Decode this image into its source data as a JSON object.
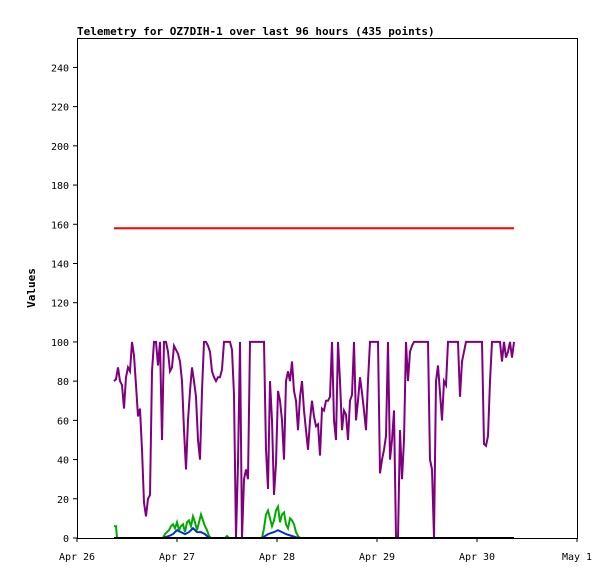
{
  "chart_data": {
    "type": "line",
    "title": "Telemetry for OZ7DIH-1 over last 96 hours (435 points)",
    "xlabel": "",
    "ylabel": "Values",
    "x_tick_labels": [
      "Apr 26",
      "Apr 27",
      "Apr 28",
      "Apr 29",
      "Apr 30",
      "May 1"
    ],
    "x_range": [
      0,
      5
    ],
    "ylim": [
      0,
      255
    ],
    "y_ticks": [
      0,
      20,
      40,
      60,
      80,
      100,
      120,
      140,
      160,
      180,
      200,
      220,
      240
    ],
    "grid": false,
    "series": [
      {
        "color": "#ff0000",
        "points": [
          [
            0.37,
            158
          ],
          [
            4.37,
            158
          ]
        ]
      },
      {
        "color": "#7f007f",
        "points": [
          [
            0.37,
            80
          ],
          [
            0.39,
            81
          ],
          [
            0.41,
            87
          ],
          [
            0.43,
            80
          ],
          [
            0.45,
            78
          ],
          [
            0.47,
            66
          ],
          [
            0.49,
            82
          ],
          [
            0.51,
            87
          ],
          [
            0.53,
            85
          ],
          [
            0.55,
            100
          ],
          [
            0.57,
            93
          ],
          [
            0.59,
            78
          ],
          [
            0.61,
            62
          ],
          [
            0.63,
            66
          ],
          [
            0.65,
            45
          ],
          [
            0.67,
            18
          ],
          [
            0.69,
            11
          ],
          [
            0.71,
            20
          ],
          [
            0.73,
            22
          ],
          [
            0.75,
            85
          ],
          [
            0.77,
            100
          ],
          [
            0.79,
            100
          ],
          [
            0.81,
            88
          ],
          [
            0.83,
            100
          ],
          [
            0.85,
            50
          ],
          [
            0.87,
            100
          ],
          [
            0.89,
            100
          ],
          [
            0.91,
            95
          ],
          [
            0.93,
            85
          ],
          [
            0.95,
            87
          ],
          [
            0.97,
            98
          ],
          [
            0.99,
            96
          ],
          [
            1.01,
            94
          ],
          [
            1.03,
            90
          ],
          [
            1.05,
            80
          ],
          [
            1.07,
            55
          ],
          [
            1.09,
            35
          ],
          [
            1.11,
            60
          ],
          [
            1.13,
            75
          ],
          [
            1.15,
            87
          ],
          [
            1.17,
            80
          ],
          [
            1.19,
            72
          ],
          [
            1.21,
            50
          ],
          [
            1.23,
            40
          ],
          [
            1.25,
            75
          ],
          [
            1.27,
            100
          ],
          [
            1.29,
            100
          ],
          [
            1.31,
            98
          ],
          [
            1.33,
            95
          ],
          [
            1.35,
            85
          ],
          [
            1.37,
            82
          ],
          [
            1.39,
            80
          ],
          [
            1.41,
            82
          ],
          [
            1.43,
            82
          ],
          [
            1.45,
            86
          ],
          [
            1.47,
            100
          ],
          [
            1.49,
            100
          ],
          [
            1.51,
            100
          ],
          [
            1.53,
            100
          ],
          [
            1.55,
            96
          ],
          [
            1.57,
            73
          ],
          [
            1.59,
            0
          ],
          [
            1.61,
            38
          ],
          [
            1.63,
            100
          ],
          [
            1.65,
            0
          ],
          [
            1.67,
            30
          ],
          [
            1.69,
            35
          ],
          [
            1.71,
            30
          ],
          [
            1.73,
            100
          ],
          [
            1.75,
            100
          ],
          [
            1.77,
            100
          ],
          [
            1.79,
            100
          ],
          [
            1.81,
            100
          ],
          [
            1.83,
            100
          ],
          [
            1.85,
            100
          ],
          [
            1.87,
            100
          ],
          [
            1.89,
            45
          ],
          [
            1.91,
            25
          ],
          [
            1.93,
            80
          ],
          [
            1.95,
            60
          ],
          [
            1.97,
            22
          ],
          [
            1.99,
            38
          ],
          [
            2.01,
            75
          ],
          [
            2.03,
            70
          ],
          [
            2.05,
            60
          ],
          [
            2.07,
            40
          ],
          [
            2.09,
            80
          ],
          [
            2.11,
            85
          ],
          [
            2.13,
            80
          ],
          [
            2.15,
            90
          ],
          [
            2.17,
            75
          ],
          [
            2.19,
            70
          ],
          [
            2.21,
            55
          ],
          [
            2.23,
            72
          ],
          [
            2.25,
            80
          ],
          [
            2.27,
            65
          ],
          [
            2.29,
            55
          ],
          [
            2.31,
            45
          ],
          [
            2.33,
            60
          ],
          [
            2.35,
            70
          ],
          [
            2.37,
            62
          ],
          [
            2.39,
            57
          ],
          [
            2.41,
            58
          ],
          [
            2.43,
            42
          ],
          [
            2.45,
            66
          ],
          [
            2.47,
            65
          ],
          [
            2.49,
            70
          ],
          [
            2.51,
            70
          ],
          [
            2.53,
            72
          ],
          [
            2.55,
            100
          ],
          [
            2.57,
            60
          ],
          [
            2.59,
            50
          ],
          [
            2.61,
            100
          ],
          [
            2.63,
            80
          ],
          [
            2.65,
            55
          ],
          [
            2.67,
            65
          ],
          [
            2.69,
            63
          ],
          [
            2.71,
            50
          ],
          [
            2.73,
            70
          ],
          [
            2.75,
            73
          ],
          [
            2.77,
            100
          ],
          [
            2.79,
            60
          ],
          [
            2.81,
            70
          ],
          [
            2.83,
            82
          ],
          [
            2.85,
            74
          ],
          [
            2.87,
            65
          ],
          [
            2.89,
            55
          ],
          [
            2.91,
            80
          ],
          [
            2.93,
            100
          ],
          [
            2.95,
            100
          ],
          [
            2.97,
            100
          ],
          [
            2.99,
            100
          ],
          [
            3.01,
            100
          ],
          [
            3.03,
            33
          ],
          [
            3.05,
            40
          ],
          [
            3.07,
            45
          ],
          [
            3.09,
            52
          ],
          [
            3.11,
            100
          ],
          [
            3.13,
            40
          ],
          [
            3.15,
            50
          ],
          [
            3.17,
            65
          ],
          [
            3.19,
            0
          ],
          [
            3.21,
            0
          ],
          [
            3.23,
            55
          ],
          [
            3.25,
            30
          ],
          [
            3.27,
            50
          ],
          [
            3.29,
            100
          ],
          [
            3.31,
            80
          ],
          [
            3.33,
            95
          ],
          [
            3.35,
            98
          ],
          [
            3.37,
            100
          ],
          [
            3.39,
            100
          ],
          [
            3.41,
            100
          ],
          [
            3.43,
            100
          ],
          [
            3.45,
            100
          ],
          [
            3.47,
            100
          ],
          [
            3.49,
            100
          ],
          [
            3.51,
            100
          ],
          [
            3.53,
            40
          ],
          [
            3.55,
            35
          ],
          [
            3.57,
            0
          ],
          [
            3.59,
            80
          ],
          [
            3.61,
            88
          ],
          [
            3.63,
            74
          ],
          [
            3.65,
            60
          ],
          [
            3.67,
            80
          ],
          [
            3.69,
            78
          ],
          [
            3.71,
            100
          ],
          [
            3.73,
            100
          ],
          [
            3.75,
            100
          ],
          [
            3.77,
            100
          ],
          [
            3.79,
            100
          ],
          [
            3.81,
            100
          ],
          [
            3.83,
            72
          ],
          [
            3.85,
            90
          ],
          [
            3.87,
            95
          ],
          [
            3.89,
            100
          ],
          [
            3.91,
            100
          ],
          [
            3.93,
            100
          ],
          [
            3.95,
            100
          ],
          [
            3.97,
            100
          ],
          [
            3.99,
            100
          ],
          [
            4.01,
            100
          ],
          [
            4.03,
            100
          ],
          [
            4.05,
            100
          ],
          [
            4.07,
            48
          ],
          [
            4.09,
            47
          ],
          [
            4.11,
            52
          ],
          [
            4.13,
            80
          ],
          [
            4.15,
            100
          ],
          [
            4.17,
            100
          ],
          [
            4.19,
            100
          ],
          [
            4.21,
            100
          ],
          [
            4.23,
            100
          ],
          [
            4.25,
            90
          ],
          [
            4.27,
            100
          ],
          [
            4.29,
            92
          ],
          [
            4.31,
            95
          ],
          [
            4.33,
            100
          ],
          [
            4.35,
            92
          ],
          [
            4.37,
            100
          ]
        ]
      },
      {
        "color": "#00aa00",
        "points": [
          [
            0.37,
            6
          ],
          [
            0.39,
            6
          ],
          [
            0.4,
            0
          ],
          [
            0.86,
            0
          ],
          [
            0.88,
            2
          ],
          [
            0.9,
            3
          ],
          [
            0.92,
            4
          ],
          [
            0.94,
            6
          ],
          [
            0.96,
            7
          ],
          [
            0.98,
            5
          ],
          [
            1.0,
            8
          ],
          [
            1.02,
            4
          ],
          [
            1.04,
            6
          ],
          [
            1.06,
            7
          ],
          [
            1.08,
            3
          ],
          [
            1.1,
            8
          ],
          [
            1.12,
            9
          ],
          [
            1.14,
            6
          ],
          [
            1.16,
            11
          ],
          [
            1.18,
            8
          ],
          [
            1.2,
            4
          ],
          [
            1.22,
            8
          ],
          [
            1.24,
            12
          ],
          [
            1.26,
            9
          ],
          [
            1.28,
            6
          ],
          [
            1.3,
            4
          ],
          [
            1.32,
            1
          ],
          [
            1.34,
            0
          ],
          [
            1.48,
            0
          ],
          [
            1.5,
            1
          ],
          [
            1.52,
            0
          ],
          [
            1.85,
            0
          ],
          [
            1.87,
            5
          ],
          [
            1.89,
            12
          ],
          [
            1.91,
            14
          ],
          [
            1.93,
            10
          ],
          [
            1.95,
            6
          ],
          [
            1.97,
            9
          ],
          [
            1.99,
            14
          ],
          [
            2.01,
            16
          ],
          [
            2.03,
            8
          ],
          [
            2.05,
            12
          ],
          [
            2.07,
            13
          ],
          [
            2.09,
            7
          ],
          [
            2.11,
            5
          ],
          [
            2.13,
            10
          ],
          [
            2.15,
            9
          ],
          [
            2.17,
            7
          ],
          [
            2.19,
            3
          ],
          [
            2.21,
            1
          ],
          [
            2.23,
            0
          ],
          [
            4.37,
            0
          ]
        ]
      },
      {
        "color": "#0033cc",
        "points": [
          [
            0.37,
            0
          ],
          [
            0.86,
            0
          ],
          [
            0.92,
            1
          ],
          [
            0.96,
            2
          ],
          [
            1.0,
            4
          ],
          [
            1.04,
            3
          ],
          [
            1.08,
            2
          ],
          [
            1.12,
            3
          ],
          [
            1.16,
            5
          ],
          [
            1.2,
            3
          ],
          [
            1.24,
            3
          ],
          [
            1.28,
            2
          ],
          [
            1.32,
            0
          ],
          [
            1.85,
            0
          ],
          [
            1.91,
            2
          ],
          [
            1.97,
            3
          ],
          [
            2.01,
            4
          ],
          [
            2.05,
            3
          ],
          [
            2.09,
            2
          ],
          [
            2.15,
            1
          ],
          [
            2.21,
            0
          ],
          [
            4.37,
            0
          ]
        ]
      },
      {
        "color": "#000000",
        "points": [
          [
            0.37,
            0
          ],
          [
            4.37,
            0
          ]
        ]
      }
    ]
  }
}
